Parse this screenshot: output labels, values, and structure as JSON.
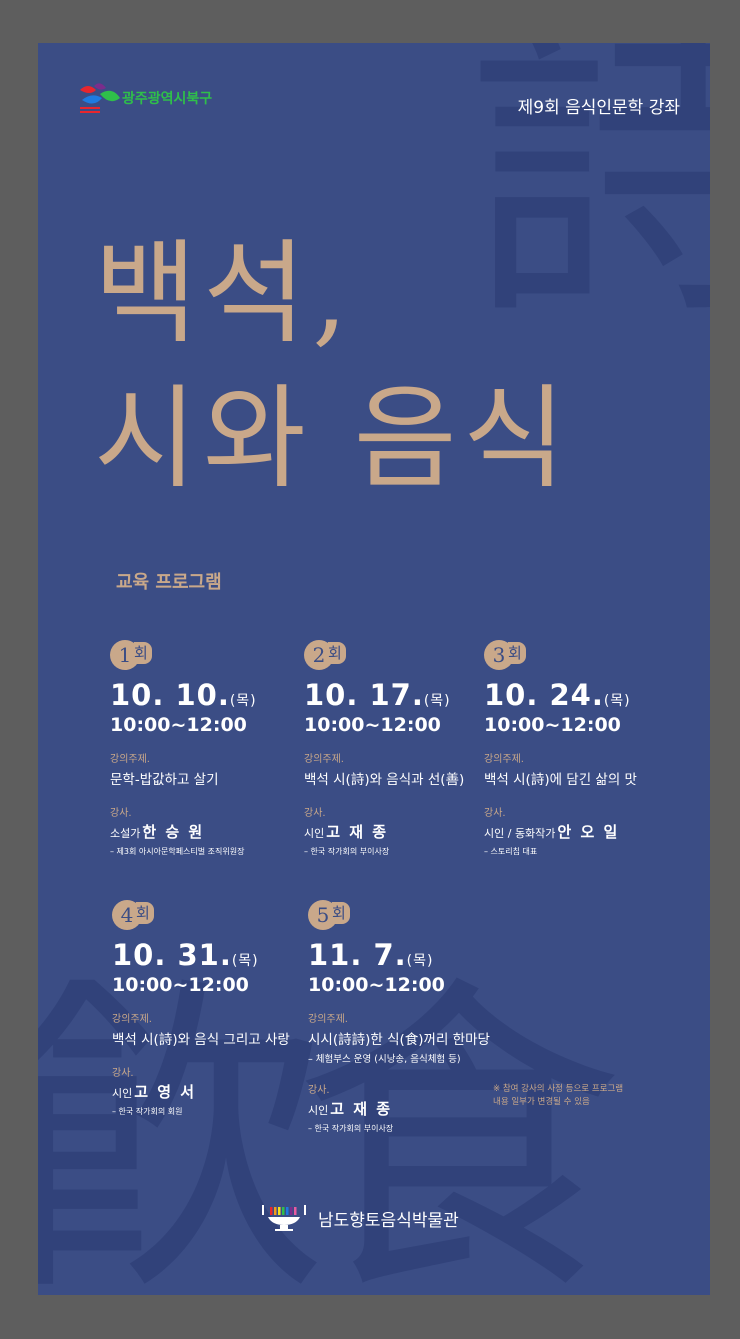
{
  "deco_glyphs": {
    "poem": "詩",
    "eat1": "飮",
    "eat2": "食"
  },
  "logo": {
    "text": "광주광역시북구",
    "icon": "gwangju-bukgu-logo-icon",
    "color": "#2fbf4a"
  },
  "series": "제9회 음식인문학 강좌",
  "title": {
    "line1": "백석,",
    "line2": "시와 음식",
    "color": "#c9a88a"
  },
  "program_label": "교육 프로그램",
  "sessions": [
    {
      "num": "1",
      "unit": "회",
      "date": "10. 10.",
      "day": "(목)",
      "time": "10:00~12:00",
      "topic_label": "강의주제.",
      "topic": "문학-밥값하고 살기",
      "topic_note": "",
      "lecturer_label": "강사.",
      "lecturer_role": "소설가",
      "lecturer_name": "한 승 원",
      "lecturer_note": "– 제3회 아시아문학페스티벌 조직위원장"
    },
    {
      "num": "2",
      "unit": "회",
      "date": "10. 17.",
      "day": "(목)",
      "time": "10:00~12:00",
      "topic_label": "강의주제.",
      "topic": "백석 시(詩)와 음식과 선(善)",
      "topic_note": "",
      "lecturer_label": "강사.",
      "lecturer_role": "시인",
      "lecturer_name": "고 재 종",
      "lecturer_note": "– 한국 작가회의 부이사장"
    },
    {
      "num": "3",
      "unit": "회",
      "date": "10. 24.",
      "day": "(목)",
      "time": "10:00~12:00",
      "topic_label": "강의주제.",
      "topic": "백석 시(詩)에 담긴 삶의 맛",
      "topic_note": "",
      "lecturer_label": "강사.",
      "lecturer_role": "시인 / 동화작가",
      "lecturer_name": "안 오 일",
      "lecturer_note": "– 스토리칩 대표"
    },
    {
      "num": "4",
      "unit": "회",
      "date": "10. 31.",
      "day": "(목)",
      "time": "10:00~12:00",
      "topic_label": "강의주제.",
      "topic": "백석 시(詩)와 음식 그리고 사랑",
      "topic_note": "",
      "lecturer_label": "강사.",
      "lecturer_role": "시인",
      "lecturer_name": "고 영 서",
      "lecturer_note": "– 한국 작가회의 회원"
    },
    {
      "num": "5",
      "unit": "회",
      "date": "11. 7.",
      "day": "(목)",
      "time": "10:00~12:00",
      "topic_label": "강의주제.",
      "topic": "시시(詩詩)한 식(食)꺼리 한마당",
      "topic_note": "– 체험부스 운영 (시낭송, 음식체험 등)",
      "lecturer_label": "강사.",
      "lecturer_role": "시인",
      "lecturer_name": "고 재 종",
      "lecturer_note": "– 한국 작가회의 부이사장"
    }
  ],
  "notice": {
    "line1": "※ 참여 강사의 사정 등으로 프로그램",
    "line2": "내용 일부가 변경될 수 있음"
  },
  "footer": {
    "text": "남도향토음식박물관",
    "icon": "museum-logo-icon"
  },
  "colors": {
    "background": "#3b4d85",
    "accent": "#c9a88a",
    "outer": "#5e5e5e"
  }
}
